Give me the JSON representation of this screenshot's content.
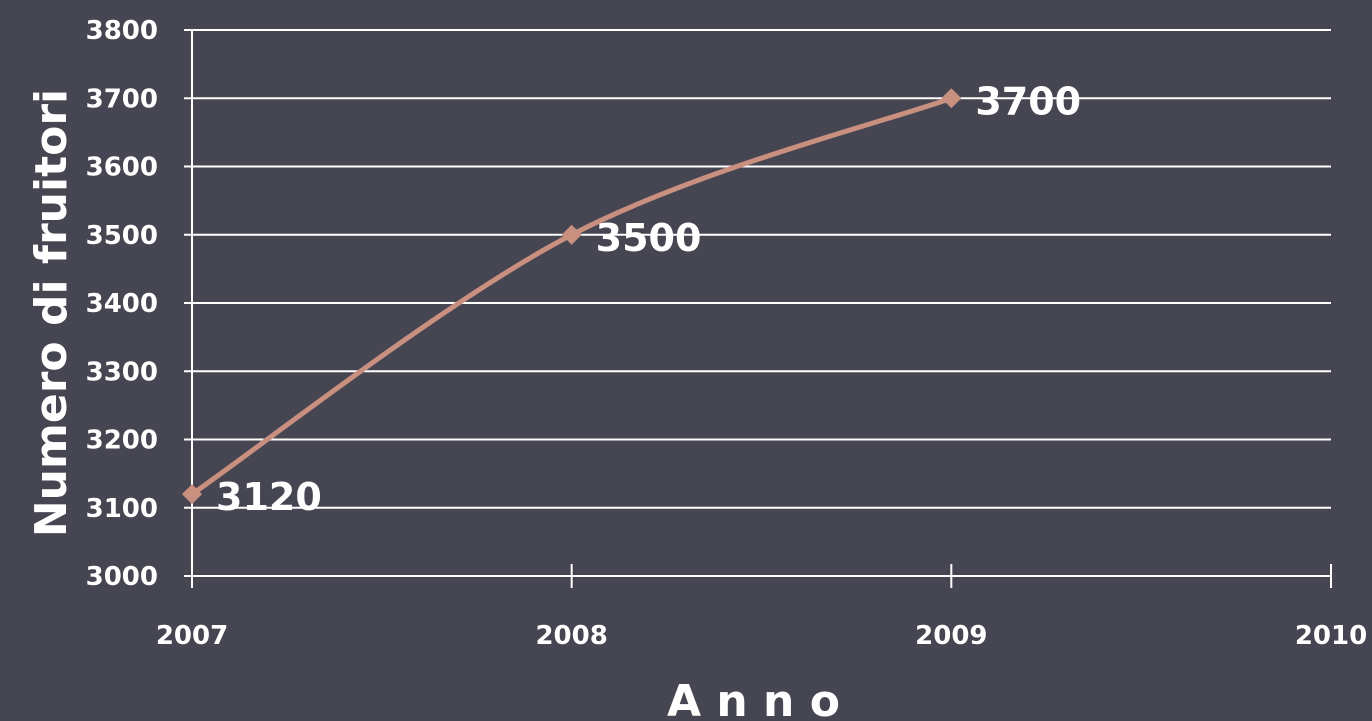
{
  "chart_data": {
    "type": "line",
    "title": "",
    "xlabel": "A n n o",
    "ylabel": "Numero di fruitori",
    "x": [
      2007,
      2008,
      2009
    ],
    "series": [
      {
        "values": [
          3120,
          3500,
          3700
        ],
        "data_labels": [
          "3120",
          "3500",
          "3700"
        ]
      }
    ],
    "xlim": [
      2007,
      2010
    ],
    "ylim": [
      3000,
      3800
    ],
    "x_ticks": [
      "2007",
      "2008",
      "2009",
      "2010"
    ],
    "y_ticks": [
      "3000",
      "3100",
      "3200",
      "3300",
      "3400",
      "3500",
      "3600",
      "3700",
      "3800"
    ],
    "grid": "horizontal",
    "legend": "none",
    "smooth": true,
    "colors": {
      "background": "#464552",
      "line": "#c99080",
      "grid": "#ffffff",
      "text": "#ffffff"
    }
  }
}
